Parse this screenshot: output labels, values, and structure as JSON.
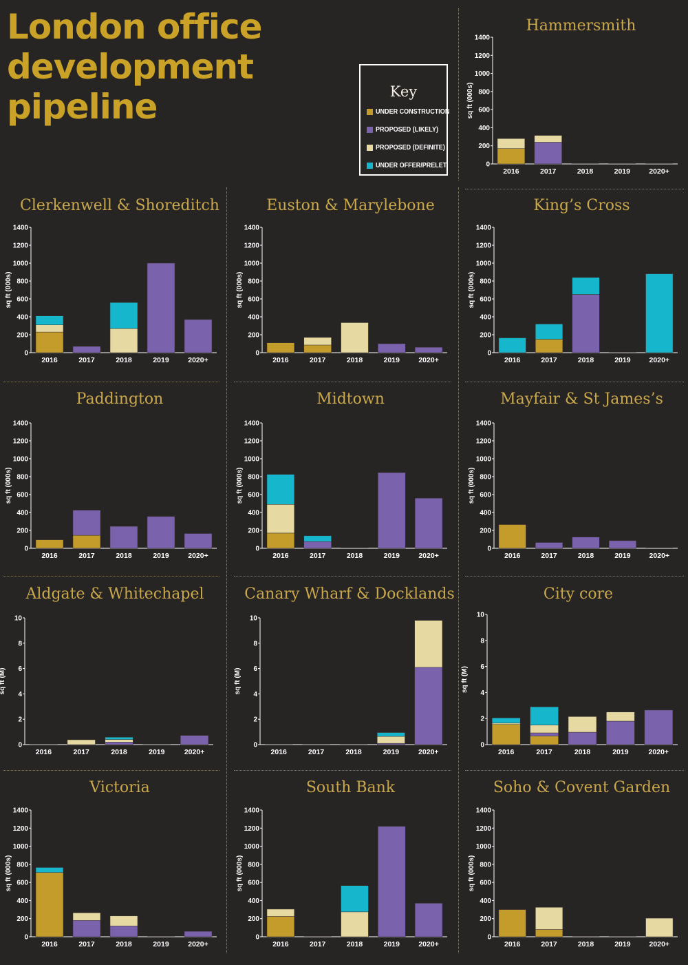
{
  "title_lines": [
    "London office",
    "development",
    "pipeline"
  ],
  "colors": {
    "under_construction": "#c39c2b",
    "proposed_likely": "#7a62ad",
    "proposed_definite": "#e6d9a2",
    "under_offer_prelet": "#16b6cc",
    "panel_title": "#c9a84c",
    "title": "#c9a227",
    "axis": "#ffffff"
  },
  "key": {
    "title": "Key",
    "items": [
      {
        "label": "UNDER CONSTRUCTION",
        "color": "#c39c2b"
      },
      {
        "label": "PROPOSED (LIKELY)",
        "color": "#7a62ad"
      },
      {
        "label": "PROPOSED (DEFINITE)",
        "color": "#e6d9a2"
      },
      {
        "label": "UNDER OFFER/PRELET",
        "color": "#16b6cc"
      }
    ]
  },
  "chart_data": [
    {
      "type": "bar",
      "title": "Hammersmith",
      "ylabel": "sq ft (000s)",
      "categories": [
        "2016",
        "2017",
        "2018",
        "2019",
        "2020+"
      ],
      "ylim": [
        0,
        1400
      ],
      "yticks": [
        0,
        200,
        400,
        600,
        800,
        1000,
        1200,
        1400
      ],
      "stacked": true,
      "series": [
        {
          "name": "UNDER CONSTRUCTION",
          "values": [
            170,
            0,
            0,
            0,
            0
          ]
        },
        {
          "name": "PROPOSED (LIKELY)",
          "values": [
            0,
            240,
            0,
            0,
            0
          ]
        },
        {
          "name": "PROPOSED (DEFINITE)",
          "values": [
            110,
            75,
            0,
            0,
            0
          ]
        },
        {
          "name": "UNDER OFFER/PRELET",
          "values": [
            0,
            0,
            0,
            0,
            0
          ]
        }
      ]
    },
    {
      "type": "bar",
      "title": "Clerkenwell & Shoreditch",
      "ylabel": "sq ft (000s)",
      "categories": [
        "2016",
        "2017",
        "2018",
        "2019",
        "2020+"
      ],
      "ylim": [
        0,
        1400
      ],
      "yticks": [
        0,
        200,
        400,
        600,
        800,
        1000,
        1200,
        1400
      ],
      "stacked": true,
      "series": [
        {
          "name": "UNDER CONSTRUCTION",
          "values": [
            230,
            0,
            0,
            0,
            0
          ]
        },
        {
          "name": "PROPOSED (LIKELY)",
          "values": [
            0,
            70,
            0,
            1000,
            370
          ]
        },
        {
          "name": "PROPOSED (DEFINITE)",
          "values": [
            80,
            0,
            270,
            0,
            0
          ]
        },
        {
          "name": "UNDER OFFER/PRELET",
          "values": [
            100,
            0,
            290,
            0,
            0
          ]
        }
      ]
    },
    {
      "type": "bar",
      "title": "Euston & Marylebone",
      "ylabel": "sq ft (000s)",
      "categories": [
        "2016",
        "2017",
        "2018",
        "2019",
        "2020+"
      ],
      "ylim": [
        0,
        1400
      ],
      "yticks": [
        0,
        200,
        400,
        600,
        800,
        1000,
        1200,
        1400
      ],
      "stacked": true,
      "series": [
        {
          "name": "UNDER CONSTRUCTION",
          "values": [
            110,
            85,
            0,
            0,
            0
          ]
        },
        {
          "name": "PROPOSED (LIKELY)",
          "values": [
            0,
            0,
            0,
            100,
            60
          ]
        },
        {
          "name": "PROPOSED (DEFINITE)",
          "values": [
            0,
            85,
            335,
            0,
            0
          ]
        },
        {
          "name": "UNDER OFFER/PRELET",
          "values": [
            0,
            0,
            0,
            0,
            0
          ]
        }
      ]
    },
    {
      "type": "bar",
      "title": "King’s Cross",
      "ylabel": "sq ft (000s)",
      "categories": [
        "2016",
        "2017",
        "2018",
        "2019",
        "2020+"
      ],
      "ylim": [
        0,
        1400
      ],
      "yticks": [
        0,
        200,
        400,
        600,
        800,
        1000,
        1200,
        1400
      ],
      "stacked": true,
      "series": [
        {
          "name": "UNDER CONSTRUCTION",
          "values": [
            0,
            150,
            0,
            0,
            0
          ]
        },
        {
          "name": "PROPOSED (LIKELY)",
          "values": [
            0,
            0,
            650,
            0,
            0
          ]
        },
        {
          "name": "PROPOSED (DEFINITE)",
          "values": [
            0,
            0,
            0,
            0,
            0
          ]
        },
        {
          "name": "UNDER OFFER/PRELET",
          "values": [
            165,
            170,
            190,
            0,
            880
          ]
        }
      ]
    },
    {
      "type": "bar",
      "title": "Paddington",
      "ylabel": "sq ft (000s)",
      "categories": [
        "2016",
        "2017",
        "2018",
        "2019",
        "2020+"
      ],
      "ylim": [
        0,
        1400
      ],
      "yticks": [
        0,
        200,
        400,
        600,
        800,
        1000,
        1200,
        1400
      ],
      "stacked": true,
      "series": [
        {
          "name": "UNDER CONSTRUCTION",
          "values": [
            95,
            145,
            0,
            0,
            0
          ]
        },
        {
          "name": "PROPOSED (LIKELY)",
          "values": [
            0,
            280,
            245,
            355,
            165
          ]
        },
        {
          "name": "PROPOSED (DEFINITE)",
          "values": [
            0,
            0,
            0,
            0,
            0
          ]
        },
        {
          "name": "UNDER OFFER/PRELET",
          "values": [
            0,
            0,
            0,
            0,
            0
          ]
        }
      ]
    },
    {
      "type": "bar",
      "title": "Midtown",
      "ylabel": "sq ft (000s)",
      "categories": [
        "2016",
        "2017",
        "2018",
        "2019",
        "2020+"
      ],
      "ylim": [
        0,
        1400
      ],
      "yticks": [
        0,
        200,
        400,
        600,
        800,
        1000,
        1200,
        1400
      ],
      "stacked": true,
      "series": [
        {
          "name": "UNDER CONSTRUCTION",
          "values": [
            170,
            0,
            0,
            0,
            0
          ]
        },
        {
          "name": "PROPOSED (LIKELY)",
          "values": [
            0,
            75,
            0,
            845,
            560
          ]
        },
        {
          "name": "PROPOSED (DEFINITE)",
          "values": [
            320,
            0,
            0,
            0,
            0
          ]
        },
        {
          "name": "UNDER OFFER/PRELET",
          "values": [
            335,
            65,
            0,
            0,
            0
          ]
        }
      ]
    },
    {
      "type": "bar",
      "title": "Mayfair & St James’s",
      "ylabel": "sq ft (000s)",
      "categories": [
        "2016",
        "2017",
        "2018",
        "2019",
        "2020+"
      ],
      "ylim": [
        0,
        1400
      ],
      "yticks": [
        0,
        200,
        400,
        600,
        800,
        1000,
        1200,
        1400
      ],
      "stacked": true,
      "series": [
        {
          "name": "UNDER CONSTRUCTION",
          "values": [
            265,
            0,
            0,
            0,
            0
          ]
        },
        {
          "name": "PROPOSED (LIKELY)",
          "values": [
            0,
            65,
            125,
            85,
            0
          ]
        },
        {
          "name": "PROPOSED (DEFINITE)",
          "values": [
            0,
            0,
            0,
            0,
            0
          ]
        },
        {
          "name": "UNDER OFFER/PRELET",
          "values": [
            0,
            0,
            0,
            0,
            0
          ]
        }
      ]
    },
    {
      "type": "bar",
      "title": "Aldgate & Whitechapel",
      "ylabel": "sq ft (M)",
      "categories": [
        "2016",
        "2017",
        "2018",
        "2019",
        "2020+"
      ],
      "ylim": [
        0,
        10
      ],
      "yticks": [
        0,
        2,
        4,
        6,
        8,
        10
      ],
      "stacked": true,
      "series": [
        {
          "name": "UNDER CONSTRUCTION",
          "values": [
            0,
            0,
            0,
            0,
            0
          ]
        },
        {
          "name": "PROPOSED (LIKELY)",
          "values": [
            0,
            0,
            0.2,
            0,
            0.72
          ]
        },
        {
          "name": "PROPOSED (DEFINITE)",
          "values": [
            0,
            0.38,
            0.2,
            0,
            0
          ]
        },
        {
          "name": "UNDER OFFER/PRELET",
          "values": [
            0,
            0,
            0.18,
            0,
            0
          ]
        }
      ]
    },
    {
      "type": "bar",
      "title": "Canary Wharf & Docklands",
      "ylabel": "sq ft (M)",
      "categories": [
        "2016",
        "2017",
        "2018",
        "2019",
        "2020+"
      ],
      "ylim": [
        0,
        10
      ],
      "yticks": [
        0,
        2,
        4,
        6,
        8,
        10
      ],
      "stacked": true,
      "series": [
        {
          "name": "UNDER CONSTRUCTION",
          "values": [
            0,
            0,
            0,
            0,
            0
          ]
        },
        {
          "name": "PROPOSED (LIKELY)",
          "values": [
            0,
            0,
            0,
            0.1,
            6.1
          ]
        },
        {
          "name": "PROPOSED (DEFINITE)",
          "values": [
            0,
            0,
            0,
            0.55,
            3.7
          ]
        },
        {
          "name": "UNDER OFFER/PRELET",
          "values": [
            0,
            0,
            0,
            0.3,
            0
          ]
        }
      ]
    },
    {
      "type": "bar",
      "title": "City core",
      "ylabel": "sq ft (M)",
      "categories": [
        "2016",
        "2017",
        "2018",
        "2019",
        "2020+"
      ],
      "ylim": [
        0,
        10
      ],
      "yticks": [
        0,
        2,
        4,
        6,
        8,
        10
      ],
      "stacked": true,
      "series": [
        {
          "name": "UNDER CONSTRUCTION",
          "values": [
            1.55,
            0.65,
            0,
            0,
            0
          ]
        },
        {
          "name": "PROPOSED (LIKELY)",
          "values": [
            0,
            0.25,
            0.95,
            1.8,
            2.65
          ]
        },
        {
          "name": "PROPOSED (DEFINITE)",
          "values": [
            0.1,
            0.6,
            1.2,
            0.7,
            0
          ]
        },
        {
          "name": "UNDER OFFER/PRELET",
          "values": [
            0.4,
            1.4,
            0,
            0,
            0
          ]
        }
      ]
    },
    {
      "type": "bar",
      "title": "Victoria",
      "ylabel": "sq ft (000s)",
      "categories": [
        "2016",
        "2017",
        "2018",
        "2019",
        "2020+"
      ],
      "ylim": [
        0,
        1400
      ],
      "yticks": [
        0,
        200,
        400,
        600,
        800,
        1000,
        1200,
        1400
      ],
      "stacked": true,
      "series": [
        {
          "name": "UNDER CONSTRUCTION",
          "values": [
            710,
            0,
            0,
            0,
            0
          ]
        },
        {
          "name": "PROPOSED (LIKELY)",
          "values": [
            0,
            180,
            120,
            0,
            60
          ]
        },
        {
          "name": "PROPOSED (DEFINITE)",
          "values": [
            0,
            85,
            110,
            0,
            0
          ]
        },
        {
          "name": "UNDER OFFER/PRELET",
          "values": [
            55,
            0,
            0,
            0,
            0
          ]
        }
      ]
    },
    {
      "type": "bar",
      "title": "South Bank",
      "ylabel": "sq ft (000s)",
      "categories": [
        "2016",
        "2017",
        "2018",
        "2019",
        "2020+"
      ],
      "ylim": [
        0,
        1400
      ],
      "yticks": [
        0,
        200,
        400,
        600,
        800,
        1000,
        1200,
        1400
      ],
      "stacked": true,
      "series": [
        {
          "name": "UNDER CONSTRUCTION",
          "values": [
            225,
            0,
            0,
            0,
            0
          ]
        },
        {
          "name": "PROPOSED (LIKELY)",
          "values": [
            0,
            0,
            0,
            1220,
            370
          ]
        },
        {
          "name": "PROPOSED (DEFINITE)",
          "values": [
            80,
            0,
            275,
            0,
            0
          ]
        },
        {
          "name": "UNDER OFFER/PRELET",
          "values": [
            0,
            0,
            290,
            0,
            0
          ]
        }
      ]
    },
    {
      "type": "bar",
      "title": "Soho & Covent Garden",
      "ylabel": "sq ft (000s)",
      "categories": [
        "2016",
        "2017",
        "2018",
        "2019",
        "2020+"
      ],
      "ylim": [
        0,
        1400
      ],
      "yticks": [
        0,
        200,
        400,
        600,
        800,
        1000,
        1200,
        1400
      ],
      "stacked": true,
      "series": [
        {
          "name": "UNDER CONSTRUCTION",
          "values": [
            300,
            80,
            0,
            0,
            0
          ]
        },
        {
          "name": "PROPOSED (LIKELY)",
          "values": [
            0,
            0,
            0,
            0,
            0
          ]
        },
        {
          "name": "PROPOSED (DEFINITE)",
          "values": [
            0,
            245,
            0,
            0,
            205
          ]
        },
        {
          "name": "UNDER OFFER/PRELET",
          "values": [
            0,
            0,
            0,
            0,
            0
          ]
        }
      ]
    }
  ]
}
